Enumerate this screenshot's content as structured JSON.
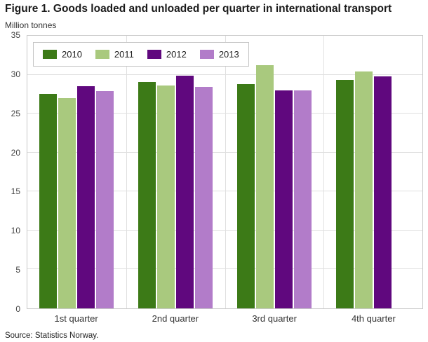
{
  "chart_data": {
    "type": "bar",
    "title": "Figure 1. Goods loaded and unloaded per quarter in international transport",
    "units_label": "Million tonnes",
    "source": "Source: Statistics Norway.",
    "categories": [
      "1st quarter",
      "2nd quarter",
      "3rd quarter",
      "4th quarter"
    ],
    "series": [
      {
        "name": "2010",
        "color": "#3c7a17",
        "values": [
          27.5,
          29.1,
          28.8,
          29.3
        ]
      },
      {
        "name": "2011",
        "color": "#a9c97e",
        "values": [
          27.0,
          28.6,
          31.2,
          30.4
        ]
      },
      {
        "name": "2012",
        "color": "#60087e",
        "values": [
          28.5,
          29.9,
          28.0,
          29.8
        ]
      },
      {
        "name": "2013",
        "color": "#b27cc9",
        "values": [
          27.9,
          28.4,
          28.0,
          null
        ]
      }
    ],
    "ylim": [
      0,
      35
    ],
    "ytick_step": 5,
    "grid": true,
    "legend_position": "top-left"
  }
}
